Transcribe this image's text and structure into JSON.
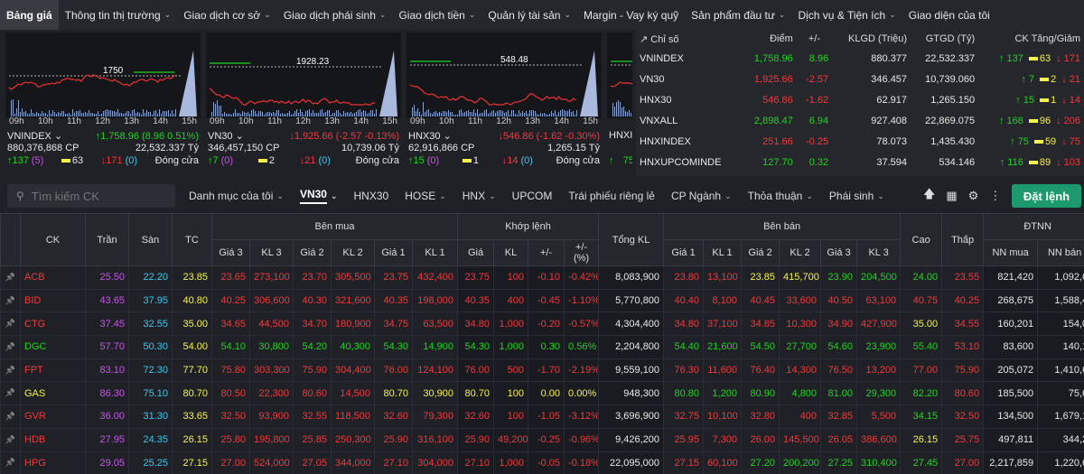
{
  "nav": {
    "items": [
      {
        "label": "Bảng giá",
        "active": true,
        "chev": false
      },
      {
        "label": "Thông tin thị trường",
        "chev": true
      },
      {
        "label": "Giao dịch cơ sở",
        "chev": true
      },
      {
        "label": "Giao dịch phái sinh",
        "chev": true
      },
      {
        "label": "Giao dịch tiền",
        "chev": true
      },
      {
        "label": "Quản lý tài sản",
        "chev": true
      },
      {
        "label": "Margin - Vay ký quỹ",
        "chev": false
      },
      {
        "label": "Sản phẩm đầu tư",
        "chev": true
      },
      {
        "label": "Dịch vụ & Tiện ích",
        "chev": true
      },
      {
        "label": "Giao diện của tôi",
        "chev": false
      }
    ]
  },
  "cards": [
    {
      "name": "VNINDEX",
      "ref": "1750",
      "change": "1,758.96 (8.96 0.51%)",
      "dir": "up",
      "volume": "880,376,868 CP",
      "value": "22,532.337 Tỷ",
      "up": "137",
      "ceil": "(5)",
      "flat": "63",
      "down": "171",
      "floor": "(0)",
      "status": "Đóng cửa"
    },
    {
      "name": "VN30",
      "ref": "1928.23",
      "change": "1,925.66 (-2.57 -0.13%)",
      "dir": "down",
      "volume": "346,457,150 CP",
      "value": "10,739.06 Tỷ",
      "up": "7",
      "ceil": "(0)",
      "flat": "2",
      "down": "21",
      "floor": "(0)",
      "status": "Đóng cửa"
    },
    {
      "name": "HNX30",
      "ref": "548.48",
      "change": "546.86 (-1.62 -0.30%)",
      "dir": "down",
      "volume": "62,916,866 CP",
      "value": "1,265.15 Tỷ",
      "up": "15",
      "ceil": "(0)",
      "flat": "1",
      "down": "14",
      "floor": "(0)",
      "status": "Đóng cửa"
    },
    {
      "name": "HNXI",
      "up": "75"
    }
  ],
  "time_ticks": [
    "09h",
    "10h",
    "11h",
    "12h",
    "13h",
    "14h",
    "15h"
  ],
  "index_table": {
    "headers": [
      "Chỉ số",
      "Điểm",
      "+/-",
      "KLGD (Triệu)",
      "GTGD (Tỷ)",
      "CK Tăng/Giảm"
    ],
    "rows": [
      {
        "name": "VNINDEX",
        "point": "1,758.96",
        "chg": "8.96",
        "vol": "880.377",
        "val": "22,532.337",
        "up": "137",
        "flat": "63",
        "down": "171",
        "dir": "up"
      },
      {
        "name": "VN30",
        "point": "1,925.66",
        "chg": "-2.57",
        "vol": "346.457",
        "val": "10,739.060",
        "up": "7",
        "flat": "2",
        "down": "21",
        "dir": "down"
      },
      {
        "name": "HNX30",
        "point": "546.86",
        "chg": "-1.62",
        "vol": "62.917",
        "val": "1,265.150",
        "up": "15",
        "flat": "1",
        "down": "14",
        "dir": "down"
      },
      {
        "name": "VNXALL",
        "point": "2,898.47",
        "chg": "6.94",
        "vol": "927.408",
        "val": "22,869.075",
        "up": "168",
        "flat": "96",
        "down": "206",
        "dir": "up"
      },
      {
        "name": "HNXINDEX",
        "point": "251.66",
        "chg": "-0.25",
        "vol": "78.073",
        "val": "1,435.430",
        "up": "75",
        "flat": "59",
        "down": "75",
        "dir": "down"
      },
      {
        "name": "HNXUPCOMINDE",
        "point": "127.70",
        "chg": "0.32",
        "vol": "37.594",
        "val": "534.146",
        "up": "116",
        "flat": "89",
        "down": "103",
        "dir": "up"
      }
    ]
  },
  "search": {
    "placeholder": "Tìm kiếm CK"
  },
  "tabs": [
    {
      "label": "Danh mục của tôi",
      "chev": true
    },
    {
      "label": "VN30",
      "chev": true,
      "active": true
    },
    {
      "label": "HNX30",
      "chev": false
    },
    {
      "label": "HOSE",
      "chev": true
    },
    {
      "label": "HNX",
      "chev": true
    },
    {
      "label": "UPCOM",
      "chev": false
    },
    {
      "label": "Trái phiếu riêng lẻ",
      "chev": false
    },
    {
      "label": "CP Ngành",
      "chev": true
    },
    {
      "label": "Thỏa thuận",
      "chev": true
    },
    {
      "label": "Phái sinh",
      "chev": true
    }
  ],
  "order_button": "Đặt lệnh",
  "grid": {
    "group_headers": {
      "buy": "Bên mua",
      "match": "Khớp lệnh",
      "sell": "Bên bán",
      "foreign": "ĐTNN"
    },
    "headers": {
      "ck": "CK",
      "tran": "Trần",
      "san": "Sàn",
      "tc": "TC",
      "g3": "Giá 3",
      "kl3": "KL 3",
      "g2": "Giá 2",
      "kl2": "KL 2",
      "g1": "Giá 1",
      "kl1": "KL 1",
      "mgia": "Giá",
      "mkl": "KL",
      "mchg": "+/-",
      "mpct": "+/-\n(%)",
      "total": "Tổng KL",
      "sg1": "Giá 1",
      "skl1": "KL 1",
      "sg2": "Giá 2",
      "skl2": "KL 2",
      "sg3": "Giá 3",
      "skl3": "KL 3",
      "cao": "Cao",
      "thap": "Thấp",
      "nnmua": "NN mua",
      "nnban": "NN bán"
    },
    "rows": [
      [
        "ACB",
        "25.50",
        "22.20",
        "23.85",
        "23.65",
        "273,100",
        "23.70",
        "305,500",
        "23.75",
        "432,400",
        "23.75",
        "100",
        "-0.10",
        "-0.42%",
        "8,083,900",
        "23.80",
        "13,100",
        "23.85",
        "415,700",
        "23.90",
        "204,500",
        "24.00",
        "23.55",
        "821,420",
        "1,092,6"
      ],
      [
        "BID",
        "43.65",
        "37.95",
        "40.80",
        "40.25",
        "306,600",
        "40.30",
        "321,600",
        "40.35",
        "198,000",
        "40.35",
        "400",
        "-0.45",
        "-1.10%",
        "5,770,800",
        "40.40",
        "8,100",
        "40.45",
        "33,600",
        "40.50",
        "63,100",
        "40.75",
        "40.25",
        "268,675",
        "1,588,4"
      ],
      [
        "CTG",
        "37.45",
        "32.55",
        "35.00",
        "34.65",
        "44,500",
        "34.70",
        "180,900",
        "34.75",
        "63,500",
        "34.80",
        "1,000",
        "-0.20",
        "-0.57%",
        "4,304,400",
        "34.80",
        "37,100",
        "34.85",
        "10,300",
        "34.90",
        "427,900",
        "35.00",
        "34.55",
        "160,201",
        "154,0"
      ],
      [
        "DGC",
        "57.70",
        "50.30",
        "54.00",
        "54.10",
        "30,800",
        "54.20",
        "40,300",
        "54.30",
        "14,900",
        "54.30",
        "1,000",
        "0.30",
        "0.56%",
        "2,204,800",
        "54.40",
        "21,600",
        "54.50",
        "27,700",
        "54.60",
        "23,900",
        "55.40",
        "53.10",
        "83,600",
        "140,1"
      ],
      [
        "FPT",
        "83.10",
        "72.30",
        "77.70",
        "75.80",
        "303,300",
        "75.90",
        "304,400",
        "76.00",
        "124,100",
        "76.00",
        "500",
        "-1.70",
        "-2.19%",
        "9,559,100",
        "76.30",
        "11,600",
        "76.40",
        "14,300",
        "76.50",
        "13,200",
        "77.00",
        "75.90",
        "205,072",
        "1,410,6"
      ],
      [
        "GAS",
        "86.30",
        "75.10",
        "80.70",
        "80.50",
        "22,300",
        "80.60",
        "14,500",
        "80.70",
        "30,900",
        "80.70",
        "100",
        "0.00",
        "0.00%",
        "948,300",
        "80.80",
        "1,200",
        "80.90",
        "4,800",
        "81.00",
        "29,300",
        "82.20",
        "80.60",
        "185,500",
        "75,6"
      ],
      [
        "GVR",
        "36.00",
        "31.30",
        "33.65",
        "32.50",
        "93,900",
        "32.55",
        "118,500",
        "32.60",
        "79,300",
        "32.60",
        "100",
        "-1.05",
        "-3.12%",
        "3,696,900",
        "32.75",
        "10,100",
        "32.80",
        "400",
        "32.85",
        "5,500",
        "34.15",
        "32.50",
        "134,500",
        "1,679,1"
      ],
      [
        "HDB",
        "27.95",
        "24.35",
        "26.15",
        "25.80",
        "195,800",
        "25.85",
        "250,300",
        "25.90",
        "316,100",
        "25.90",
        "49,200",
        "-0.25",
        "-0.96%",
        "9,426,200",
        "25.95",
        "7,300",
        "26.00",
        "145,500",
        "26.05",
        "386,600",
        "26.15",
        "25.75",
        "497,811",
        "344,2"
      ],
      [
        "HPG",
        "29.05",
        "25.25",
        "27.15",
        "27.00",
        "524,000",
        "27.05",
        "344,000",
        "27.10",
        "304,000",
        "27.10",
        "1,000",
        "-0.05",
        "-0.18%",
        "22,095,000",
        "27.15",
        "60,100",
        "27.20",
        "200,200",
        "27.25",
        "310,400",
        "27.45",
        "27.00",
        "2,217,859",
        "1,220,6"
      ]
    ],
    "colors": [
      [
        "",
        "pur",
        "cyan",
        "yel",
        "red",
        "red",
        "red",
        "red",
        "red",
        "red",
        "red",
        "red",
        "red",
        "red",
        "white",
        "red",
        "red",
        "yel",
        "yel",
        "green",
        "green",
        "green",
        "red",
        "white",
        "white"
      ],
      [
        "",
        "pur",
        "cyan",
        "yel",
        "red",
        "red",
        "red",
        "red",
        "red",
        "red",
        "red",
        "red",
        "red",
        "red",
        "white",
        "red",
        "red",
        "red",
        "red",
        "red",
        "red",
        "red",
        "red",
        "white",
        "white"
      ],
      [
        "",
        "pur",
        "cyan",
        "yel",
        "red",
        "red",
        "red",
        "red",
        "red",
        "red",
        "red",
        "red",
        "red",
        "red",
        "white",
        "red",
        "red",
        "red",
        "red",
        "red",
        "red",
        "yel",
        "red",
        "white",
        "white"
      ],
      [
        "",
        "pur",
        "cyan",
        "yel",
        "green",
        "green",
        "green",
        "green",
        "green",
        "green",
        "green",
        "green",
        "green",
        "green",
        "white",
        "green",
        "green",
        "green",
        "green",
        "green",
        "green",
        "green",
        "red",
        "white",
        "white"
      ],
      [
        "",
        "pur",
        "cyan",
        "yel",
        "red",
        "red",
        "red",
        "red",
        "red",
        "red",
        "red",
        "red",
        "red",
        "red",
        "white",
        "red",
        "red",
        "red",
        "red",
        "red",
        "red",
        "red",
        "red",
        "white",
        "white"
      ],
      [
        "",
        "pur",
        "cyan",
        "yel",
        "red",
        "red",
        "red",
        "red",
        "yel",
        "yel",
        "yel",
        "yel",
        "yel",
        "yel",
        "white",
        "green",
        "green",
        "green",
        "green",
        "green",
        "green",
        "green",
        "red",
        "white",
        "white"
      ],
      [
        "",
        "pur",
        "cyan",
        "yel",
        "red",
        "red",
        "red",
        "red",
        "red",
        "red",
        "red",
        "red",
        "red",
        "red",
        "white",
        "red",
        "red",
        "red",
        "red",
        "red",
        "red",
        "green",
        "red",
        "white",
        "white"
      ],
      [
        "",
        "pur",
        "cyan",
        "yel",
        "red",
        "red",
        "red",
        "red",
        "red",
        "red",
        "red",
        "red",
        "red",
        "red",
        "white",
        "red",
        "red",
        "red",
        "red",
        "red",
        "red",
        "yel",
        "red",
        "white",
        "white"
      ],
      [
        "",
        "pur",
        "cyan",
        "yel",
        "red",
        "red",
        "red",
        "red",
        "red",
        "red",
        "red",
        "red",
        "red",
        "red",
        "white",
        "red",
        "red",
        "green",
        "green",
        "green",
        "green",
        "green",
        "red",
        "white",
        "white"
      ]
    ]
  }
}
